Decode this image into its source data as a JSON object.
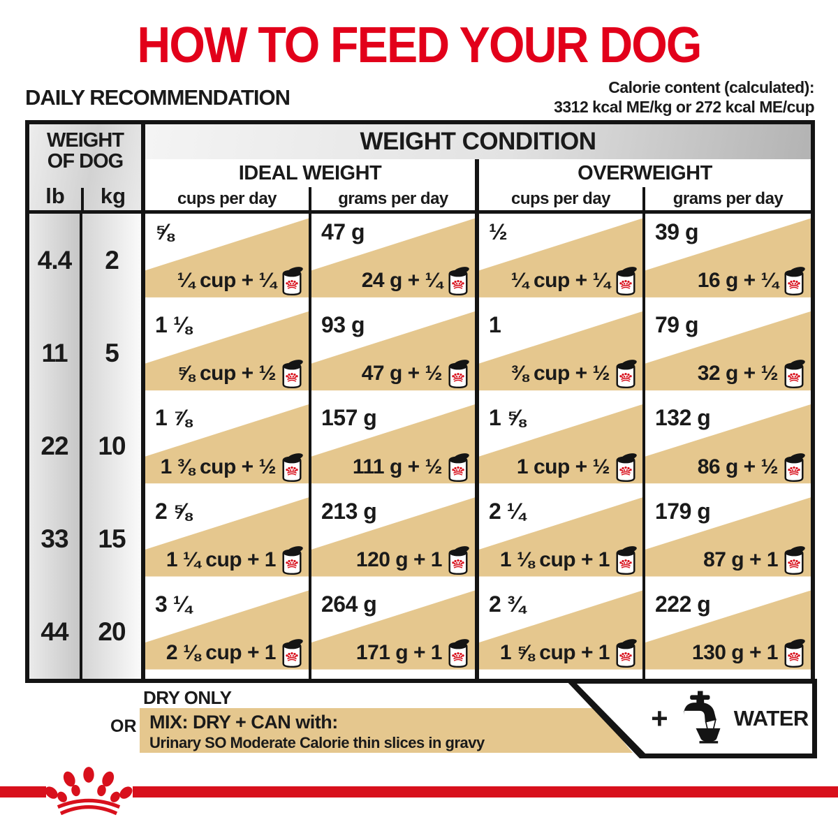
{
  "page": {
    "title": "HOW TO FEED YOUR DOG",
    "subtitle": "DAILY RECOMMENDATION",
    "calorie_line1": "Calorie content (calculated):",
    "calorie_line2": "3312 kcal ME/kg or 272 kcal ME/cup"
  },
  "table": {
    "weight_of_dog_line1": "WEIGHT",
    "weight_of_dog_line2": "OF DOG",
    "lb_label": "lb",
    "kg_label": "kg",
    "condition_header": "WEIGHT CONDITION",
    "ideal_header": "IDEAL WEIGHT",
    "overweight_header": "OVERWEIGHT",
    "cups_col": "cups per day",
    "grams_col": "grams per day",
    "rows": [
      {
        "lb": "4.4",
        "kg": "2",
        "ideal_cups_dry": "⅝",
        "ideal_cups_mix": "¼ cup + ¼",
        "ideal_grams_dry": "47 g",
        "ideal_grams_mix": "24 g + ¼",
        "ow_cups_dry": "½",
        "ow_cups_mix": "¼ cup + ¼",
        "ow_grams_dry": "39 g",
        "ow_grams_mix": "16 g + ¼"
      },
      {
        "lb": "11",
        "kg": "5",
        "ideal_cups_dry": "1 ⅛",
        "ideal_cups_mix": "⅝ cup + ½",
        "ideal_grams_dry": "93 g",
        "ideal_grams_mix": "47 g + ½",
        "ow_cups_dry": "1",
        "ow_cups_mix": "⅜ cup + ½",
        "ow_grams_dry": "79 g",
        "ow_grams_mix": "32 g + ½"
      },
      {
        "lb": "22",
        "kg": "10",
        "ideal_cups_dry": "1 ⅞",
        "ideal_cups_mix": "1 ⅜ cup + ½",
        "ideal_grams_dry": "157 g",
        "ideal_grams_mix": "111 g + ½",
        "ow_cups_dry": "1 ⅝",
        "ow_cups_mix": "1 cup + ½",
        "ow_grams_dry": "132 g",
        "ow_grams_mix": "86 g + ½"
      },
      {
        "lb": "33",
        "kg": "15",
        "ideal_cups_dry": "2 ⅝",
        "ideal_cups_mix": "1 ¼ cup + 1",
        "ideal_grams_dry": "213 g",
        "ideal_grams_mix": "120 g + 1",
        "ow_cups_dry": "2 ¼",
        "ow_cups_mix": "1 ⅛ cup + 1",
        "ow_grams_dry": "179 g",
        "ow_grams_mix": "87 g + 1"
      },
      {
        "lb": "44",
        "kg": "20",
        "ideal_cups_dry": "3 ¼",
        "ideal_cups_mix": "2 ⅛ cup + 1",
        "ideal_grams_dry": "264 g",
        "ideal_grams_mix": "171 g + 1",
        "ow_cups_dry": "2 ¾",
        "ow_cups_mix": "1 ⅝ cup + 1",
        "ow_grams_dry": "222 g",
        "ow_grams_mix": "130 g + 1"
      }
    ]
  },
  "legend": {
    "dry_label": "DRY ONLY",
    "or_label": "OR",
    "mix_title": "MIX: DRY + CAN with:",
    "mix_subtitle": "Urinary SO Moderate Calorie thin slices in gravy",
    "plus": "+",
    "water_label": "WATER"
  },
  "colors": {
    "brand_red": "#e2001a",
    "mix_tan": "#e5c78e",
    "text_black": "#1a1a1a"
  }
}
